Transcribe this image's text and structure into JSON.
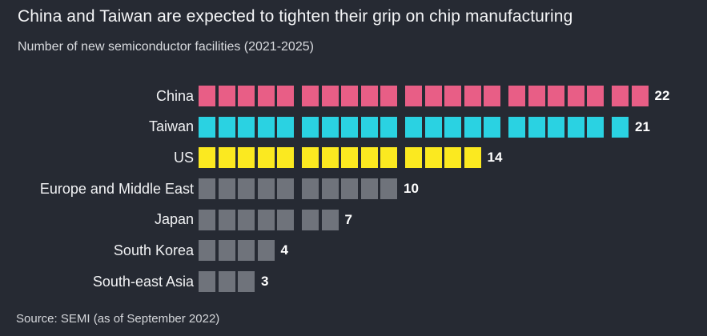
{
  "header": {
    "title": "China and Taiwan are expected to tighten their grip on chip manufacturing",
    "subtitle": "Number of new semiconductor facilities (2021-2025)"
  },
  "footer": {
    "source": "Source: SEMI (as of September 2022)"
  },
  "colors": {
    "background": "#262a33",
    "china_pink": "#e85e86",
    "taiwan_cyan": "#2ad2e2",
    "us_yellow": "#fbe920",
    "neutral_gray": "#6f737b",
    "value_text": "#ffffff"
  },
  "chart_data": {
    "type": "bar",
    "style": "pictogram-unit-squares",
    "group_size": 5,
    "title": "China and Taiwan are expected to tighten their grip on chip manufacturing",
    "subtitle": "Number of new semiconductor facilities (2021-2025)",
    "source": "Source: SEMI (as of September 2022)",
    "categories": [
      "China",
      "Taiwan",
      "US",
      "Europe and Middle East",
      "Japan",
      "South Korea",
      "South-east Asia"
    ],
    "values": [
      22,
      21,
      14,
      10,
      7,
      4,
      3
    ],
    "bar_colors": [
      "#e85e86",
      "#2ad2e2",
      "#fbe920",
      "#6f737b",
      "#6f737b",
      "#6f737b",
      "#6f737b"
    ],
    "value_labels": [
      "22",
      "21",
      "14",
      "10",
      "7",
      "4",
      "3"
    ],
    "legend": false,
    "grid": false,
    "orientation": "horizontal"
  }
}
